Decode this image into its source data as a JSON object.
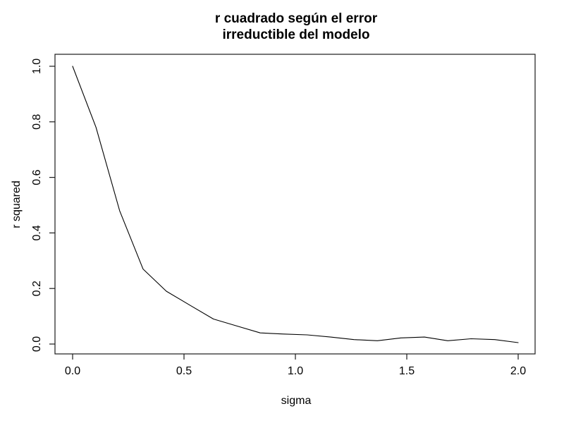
{
  "figure": {
    "title_line1": "r cuadrado según el error",
    "title_line2": "irreductible del modelo",
    "xlabel": "sigma",
    "ylabel": "r squared"
  },
  "chart_data": {
    "type": "line",
    "title": "r cuadrado según el error\nirreductible del modelo",
    "xlabel": "sigma",
    "ylabel": "r squared",
    "x": [
      0.0,
      0.105,
      0.211,
      0.316,
      0.421,
      0.526,
      0.632,
      0.737,
      0.842,
      0.947,
      1.053,
      1.158,
      1.263,
      1.368,
      1.474,
      1.579,
      1.684,
      1.789,
      1.895,
      2.0
    ],
    "y": [
      1.0,
      0.78,
      0.48,
      0.27,
      0.19,
      0.14,
      0.09,
      0.065,
      0.04,
      0.036,
      0.033,
      0.025,
      0.016,
      0.012,
      0.022,
      0.025,
      0.012,
      0.019,
      0.016,
      0.005
    ],
    "x_ticks": [
      0.0,
      0.5,
      1.0,
      1.5,
      2.0
    ],
    "y_ticks": [
      0.0,
      0.2,
      0.4,
      0.6,
      0.8,
      1.0
    ],
    "xlim": [
      0.0,
      2.0
    ],
    "ylim": [
      0.0,
      1.0
    ],
    "line_color": "#000000",
    "axis_color": "#1a1a1a",
    "background": "#ffffff",
    "grid": false,
    "legend": null
  }
}
